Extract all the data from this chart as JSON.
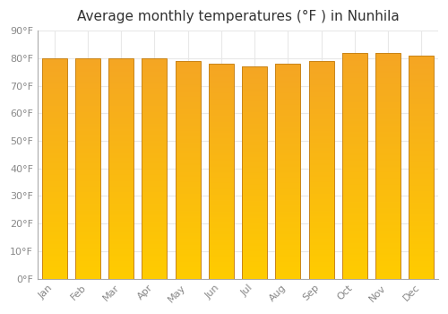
{
  "title": "Average monthly temperatures (°F ) in Nunhila",
  "months": [
    "Jan",
    "Feb",
    "Mar",
    "Apr",
    "May",
    "Jun",
    "Jul",
    "Aug",
    "Sep",
    "Oct",
    "Nov",
    "Dec"
  ],
  "values": [
    80,
    80,
    80,
    80,
    79,
    78,
    77,
    78,
    79,
    82,
    82,
    81
  ],
  "ylim": [
    0,
    90
  ],
  "yticks": [
    0,
    10,
    20,
    30,
    40,
    50,
    60,
    70,
    80,
    90
  ],
  "ytick_labels": [
    "0°F",
    "10°F",
    "20°F",
    "30°F",
    "40°F",
    "50°F",
    "60°F",
    "70°F",
    "80°F",
    "90°F"
  ],
  "bar_color_bottom": "#FFCC00",
  "bar_color_top": "#F5A623",
  "bar_edge_color": "#C8841A",
  "background_color": "#FFFFFF",
  "grid_color": "#E8E8E8",
  "title_fontsize": 11,
  "tick_fontsize": 8,
  "bar_width": 0.75
}
